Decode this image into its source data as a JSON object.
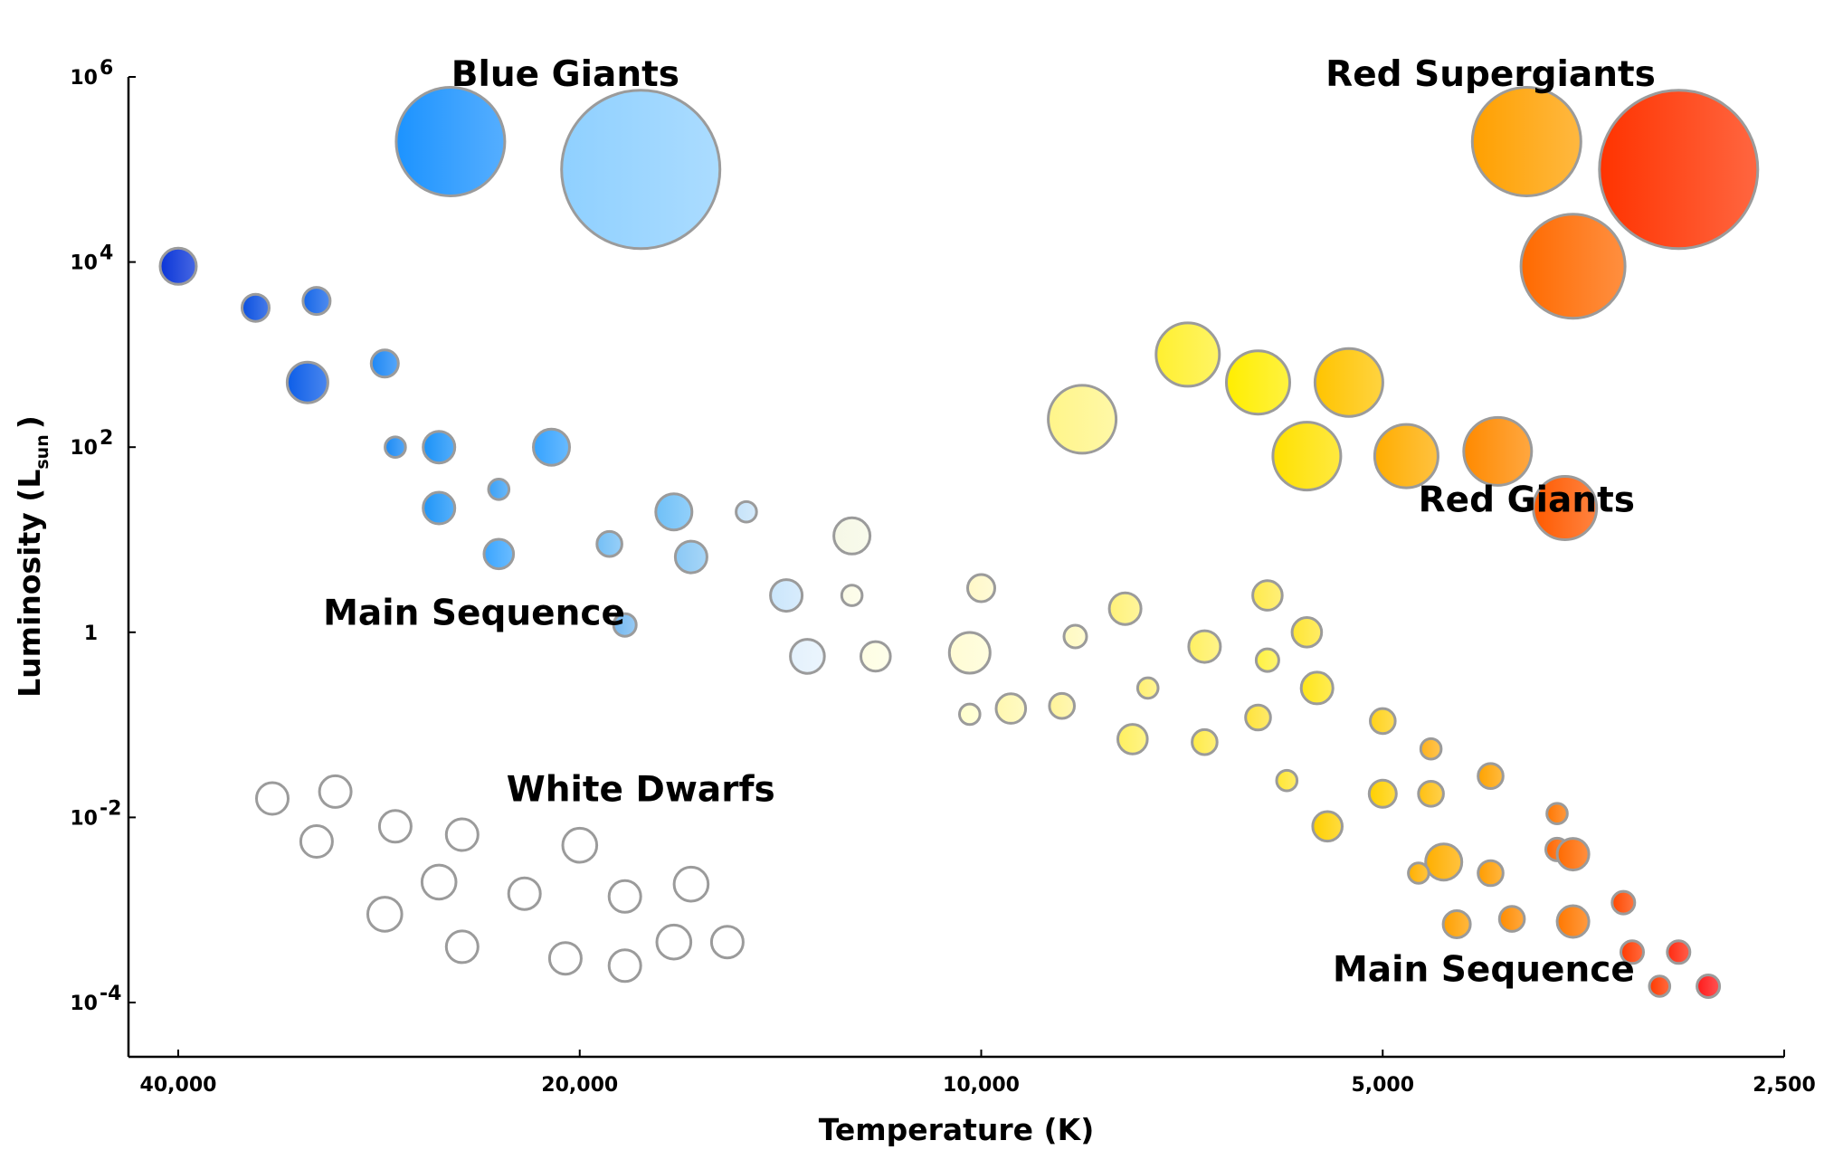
{
  "chart_data": {
    "type": "scatter",
    "title": "",
    "xlabel": "Temperature (K)",
    "ylabel_main": "Luminosity (L",
    "ylabel_sub": "sun",
    "ylabel_close": ")",
    "x_scale": "log",
    "x_reversed": true,
    "y_scale": "log",
    "xlim": [
      45000,
      2500
    ],
    "ylim": [
      3e-05,
      1000000
    ],
    "grid": false,
    "x_ticks": [
      {
        "value": 40000,
        "label": "40,000"
      },
      {
        "value": 20000,
        "label": "20,000"
      },
      {
        "value": 10000,
        "label": "10,000"
      },
      {
        "value": 5000,
        "label": "5,000"
      },
      {
        "value": 2500,
        "label": "2,500"
      }
    ],
    "y_ticks": [
      {
        "value": 1000000,
        "base": "10",
        "exp": "6"
      },
      {
        "value": 10000,
        "base": "10",
        "exp": "4"
      },
      {
        "value": 100,
        "base": "10",
        "exp": "2"
      },
      {
        "value": 1,
        "base": "1",
        "exp": ""
      },
      {
        "value": 0.01,
        "base": "10",
        "exp": "-2"
      },
      {
        "value": 0.0001,
        "base": "10",
        "exp": "-4"
      }
    ],
    "annotations": [
      {
        "text": "Blue Giants",
        "x": 20500,
        "y": 800000
      },
      {
        "text": "Red Supergiants",
        "x": 4150,
        "y": 800000
      },
      {
        "text": "Red Giants",
        "x": 3900,
        "y": 20
      },
      {
        "text": "Main Sequence",
        "x": 24000,
        "y": 1.2
      },
      {
        "text": "White Dwarfs",
        "x": 18000,
        "y": 0.015
      },
      {
        "text": "Main Sequence",
        "x": 4200,
        "y": 0.00017
      }
    ],
    "series": [
      {
        "name": "Blue Giants",
        "points": [
          {
            "x": 25000,
            "y": 200000,
            "size": 24,
            "color": "#1c93ff"
          },
          {
            "x": 18000,
            "y": 100000,
            "size": 35,
            "color": "#8fd0ff"
          }
        ]
      },
      {
        "name": "Red Supergiants",
        "points": [
          {
            "x": 3900,
            "y": 200000,
            "size": 24,
            "color": "#ffa000"
          },
          {
            "x": 3600,
            "y": 9000,
            "size": 23,
            "color": "#ff6a00"
          },
          {
            "x": 3000,
            "y": 100000,
            "size": 35,
            "color": "#ff3300"
          }
        ]
      },
      {
        "name": "Red Giants",
        "points": [
          {
            "x": 8400,
            "y": 200,
            "size": 15,
            "color": "#fff58a"
          },
          {
            "x": 7000,
            "y": 1000,
            "size": 14,
            "color": "#fff030"
          },
          {
            "x": 6200,
            "y": 500,
            "size": 14,
            "color": "#ffee00"
          },
          {
            "x": 5300,
            "y": 500,
            "size": 15,
            "color": "#ffc400"
          },
          {
            "x": 5700,
            "y": 80,
            "size": 15,
            "color": "#ffe100"
          },
          {
            "x": 4800,
            "y": 80,
            "size": 14,
            "color": "#ffad00"
          },
          {
            "x": 4100,
            "y": 90,
            "size": 15,
            "color": "#ff8a00"
          },
          {
            "x": 3650,
            "y": 22,
            "size": 14,
            "color": "#ff5a00"
          }
        ]
      },
      {
        "name": "Main Sequence",
        "points": [
          {
            "x": 40000,
            "y": 9000,
            "size": 8,
            "color": "#0a35d8"
          },
          {
            "x": 35000,
            "y": 3200,
            "size": 6,
            "color": "#0a4fe0"
          },
          {
            "x": 31500,
            "y": 3800,
            "size": 6,
            "color": "#1566e8"
          },
          {
            "x": 32000,
            "y": 500,
            "size": 9,
            "color": "#0d5ee8"
          },
          {
            "x": 28000,
            "y": 800,
            "size": 6,
            "color": "#1e88f5"
          },
          {
            "x": 27500,
            "y": 100,
            "size": 4.5,
            "color": "#1a8af5"
          },
          {
            "x": 25500,
            "y": 100,
            "size": 7,
            "color": "#1a92f8"
          },
          {
            "x": 21000,
            "y": 100,
            "size": 8,
            "color": "#36a3ff"
          },
          {
            "x": 23000,
            "y": 35,
            "size": 4.5,
            "color": "#3aa0f5"
          },
          {
            "x": 25500,
            "y": 22,
            "size": 7,
            "color": "#1e95f8"
          },
          {
            "x": 23000,
            "y": 7,
            "size": 6.5,
            "color": "#3aa5ff"
          },
          {
            "x": 17000,
            "y": 20,
            "size": 8,
            "color": "#6fc0f8"
          },
          {
            "x": 19000,
            "y": 9,
            "size": 5.5,
            "color": "#74bff5"
          },
          {
            "x": 16500,
            "y": 6.5,
            "size": 7,
            "color": "#8ac8f5"
          },
          {
            "x": 18500,
            "y": 1.2,
            "size": 5,
            "color": "#74b8f0"
          },
          {
            "x": 15000,
            "y": 20,
            "size": 4.5,
            "color": "#c6e3fa"
          },
          {
            "x": 14000,
            "y": 2.5,
            "size": 7,
            "color": "#cbe6fb"
          },
          {
            "x": 13500,
            "y": 0.55,
            "size": 7.5,
            "color": "#e4f1fc"
          },
          {
            "x": 12500,
            "y": 11,
            "size": 8,
            "color": "#f6f8e6"
          },
          {
            "x": 12500,
            "y": 2.5,
            "size": 4.5,
            "color": "#fbfbe6"
          },
          {
            "x": 12000,
            "y": 0.55,
            "size": 6.5,
            "color": "#fefde3"
          },
          {
            "x": 10000,
            "y": 3,
            "size": 6,
            "color": "#fff8c8"
          },
          {
            "x": 10200,
            "y": 0.6,
            "size": 9,
            "color": "#fffcd4"
          },
          {
            "x": 8500,
            "y": 0.9,
            "size": 5,
            "color": "#fffac0"
          },
          {
            "x": 7800,
            "y": 1.8,
            "size": 7,
            "color": "#fff27a"
          },
          {
            "x": 6800,
            "y": 0.7,
            "size": 7,
            "color": "#fff062"
          },
          {
            "x": 6100,
            "y": 2.5,
            "size": 6.5,
            "color": "#ffea4c"
          },
          {
            "x": 5700,
            "y": 1,
            "size": 6.5,
            "color": "#ffe633"
          },
          {
            "x": 6100,
            "y": 0.5,
            "size": 5,
            "color": "#fff140"
          },
          {
            "x": 7500,
            "y": 0.25,
            "size": 4.5,
            "color": "#fff070"
          },
          {
            "x": 5600,
            "y": 0.25,
            "size": 7,
            "color": "#ffe61a"
          },
          {
            "x": 10200,
            "y": 0.13,
            "size": 4.5,
            "color": "#ffffcc"
          },
          {
            "x": 9500,
            "y": 0.15,
            "size": 6.5,
            "color": "#fff8b0"
          },
          {
            "x": 8700,
            "y": 0.16,
            "size": 5.5,
            "color": "#fff49a"
          },
          {
            "x": 7700,
            "y": 0.07,
            "size": 6.5,
            "color": "#fff060"
          },
          {
            "x": 6800,
            "y": 0.065,
            "size": 5.5,
            "color": "#ffeb48"
          },
          {
            "x": 6200,
            "y": 0.12,
            "size": 5.5,
            "color": "#ffe33a"
          },
          {
            "x": 5000,
            "y": 0.11,
            "size": 5.5,
            "color": "#ffd21a"
          },
          {
            "x": 5900,
            "y": 0.025,
            "size": 4.5,
            "color": "#ffe633"
          },
          {
            "x": 5000,
            "y": 0.018,
            "size": 6,
            "color": "#ffd000"
          },
          {
            "x": 4600,
            "y": 0.055,
            "size": 4.5,
            "color": "#ffb21a"
          },
          {
            "x": 4600,
            "y": 0.018,
            "size": 5.5,
            "color": "#ffc012"
          },
          {
            "x": 4150,
            "y": 0.028,
            "size": 5.5,
            "color": "#ffa300"
          },
          {
            "x": 5500,
            "y": 0.008,
            "size": 6.5,
            "color": "#ffd000"
          },
          {
            "x": 4500,
            "y": 0.0033,
            "size": 8,
            "color": "#ffaf00"
          },
          {
            "x": 4700,
            "y": 0.0025,
            "size": 4.5,
            "color": "#ffb000"
          },
          {
            "x": 4150,
            "y": 0.0025,
            "size": 5.5,
            "color": "#ff9d00"
          },
          {
            "x": 3700,
            "y": 0.011,
            "size": 4.5,
            "color": "#ff7700"
          },
          {
            "x": 3700,
            "y": 0.0045,
            "size": 5,
            "color": "#ff6600"
          },
          {
            "x": 3600,
            "y": 0.004,
            "size": 7,
            "color": "#ff6a00"
          },
          {
            "x": 4400,
            "y": 0.0007,
            "size": 6,
            "color": "#ffa000"
          },
          {
            "x": 4000,
            "y": 0.0008,
            "size": 5.5,
            "color": "#ff8c00"
          },
          {
            "x": 3600,
            "y": 0.00075,
            "size": 7,
            "color": "#ff7800"
          },
          {
            "x": 3300,
            "y": 0.0012,
            "size": 5,
            "color": "#ff4800"
          },
          {
            "x": 3250,
            "y": 0.00035,
            "size": 5,
            "color": "#ff3a00"
          },
          {
            "x": 3000,
            "y": 0.00035,
            "size": 5,
            "color": "#ff2a10"
          },
          {
            "x": 3100,
            "y": 0.00015,
            "size": 4.5,
            "color": "#ff3a00"
          },
          {
            "x": 2850,
            "y": 0.00015,
            "size": 5,
            "color": "#ff1a1a"
          }
        ]
      },
      {
        "name": "White Dwarfs",
        "points": [
          {
            "x": 34000,
            "y": 0.016,
            "size": 7,
            "color": "#ffffff"
          },
          {
            "x": 30500,
            "y": 0.019,
            "size": 7,
            "color": "#ffffff"
          },
          {
            "x": 31500,
            "y": 0.0055,
            "size": 7,
            "color": "#ffffff"
          },
          {
            "x": 27500,
            "y": 0.008,
            "size": 7,
            "color": "#ffffff"
          },
          {
            "x": 24500,
            "y": 0.0065,
            "size": 7,
            "color": "#ffffff"
          },
          {
            "x": 20000,
            "y": 0.005,
            "size": 7.5,
            "color": "#ffffff"
          },
          {
            "x": 25500,
            "y": 0.002,
            "size": 7.5,
            "color": "#ffffff"
          },
          {
            "x": 22000,
            "y": 0.0015,
            "size": 7,
            "color": "#ffffff"
          },
          {
            "x": 18500,
            "y": 0.0014,
            "size": 7,
            "color": "#ffffff"
          },
          {
            "x": 16500,
            "y": 0.0019,
            "size": 7.5,
            "color": "#ffffff"
          },
          {
            "x": 28000,
            "y": 0.0009,
            "size": 7.5,
            "color": "#ffffff"
          },
          {
            "x": 24500,
            "y": 0.0004,
            "size": 7,
            "color": "#ffffff"
          },
          {
            "x": 20500,
            "y": 0.0003,
            "size": 7,
            "color": "#ffffff"
          },
          {
            "x": 18500,
            "y": 0.00025,
            "size": 7,
            "color": "#ffffff"
          },
          {
            "x": 17000,
            "y": 0.00045,
            "size": 7.5,
            "color": "#ffffff"
          },
          {
            "x": 15500,
            "y": 0.00045,
            "size": 7,
            "color": "#ffffff"
          }
        ]
      }
    ]
  }
}
